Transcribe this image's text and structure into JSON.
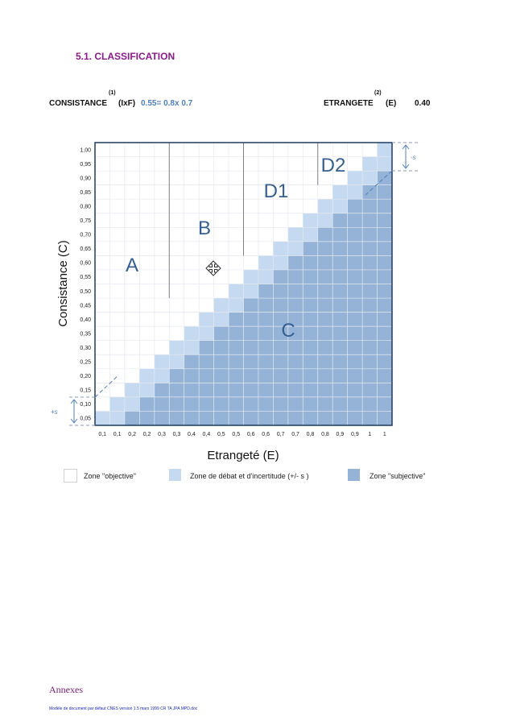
{
  "section_title": "5.1. CLASSIFICATION",
  "header": {
    "consistance_label": "CONSISTANCE",
    "consistance_sup": "(1)",
    "consistance_var": "(IxF)",
    "consistance_value": "0.55= 0.8x 0.7",
    "etrangete_label": "ETRANGETE",
    "etrangete_sup": "(2)",
    "etrangete_var": "(E)",
    "etrangete_value": "0.40"
  },
  "diagram": {
    "y_axis_label": "Consistance (C)",
    "x_axis_label": "Etrangeté (E)",
    "y_ticks": [
      "1,00",
      "0,95",
      "0,90",
      "0,85",
      "0,80",
      "0,75",
      "0,70",
      "0,65",
      "0,60",
      "0,55",
      "0,50",
      "0,45",
      "0,40",
      "0,35",
      "0,30",
      "0,25",
      "0,20",
      "0,15",
      "0,10",
      "0,05"
    ],
    "x_ticks": [
      "0,1",
      "0,1",
      "0,2",
      "0,2",
      "0,3",
      "0,3",
      "0,4",
      "0,4",
      "0,5",
      "0,5",
      "0,6",
      "0,6",
      "0,7",
      "0,7",
      "0,8",
      "0,8",
      "0,9",
      "0,9",
      "1",
      "1"
    ],
    "zone_labels": {
      "A": "A",
      "B": "B",
      "C": "C",
      "D1": "D1",
      "D2": "D2"
    },
    "margin_plus": "+s",
    "margin_minus": "-s",
    "colors": {
      "objective": "#ffffff",
      "debate": "#c5d9f1",
      "subjective": "#95b3d7",
      "grid": "#ffffff",
      "frame": "#1f3a5f",
      "divider": "#808080",
      "label": "#365f91"
    }
  },
  "legend": {
    "objective": "Zone \"objective\"",
    "debate": "Zone de débat et d'incertitude (+/- s )",
    "subjective": "Zone \"subjective\""
  },
  "footer": {
    "title": "Annexes",
    "note": "Modèle de document par défaut CNES version 1.5 mars 1999 CR TA JPA MPD.doc"
  }
}
